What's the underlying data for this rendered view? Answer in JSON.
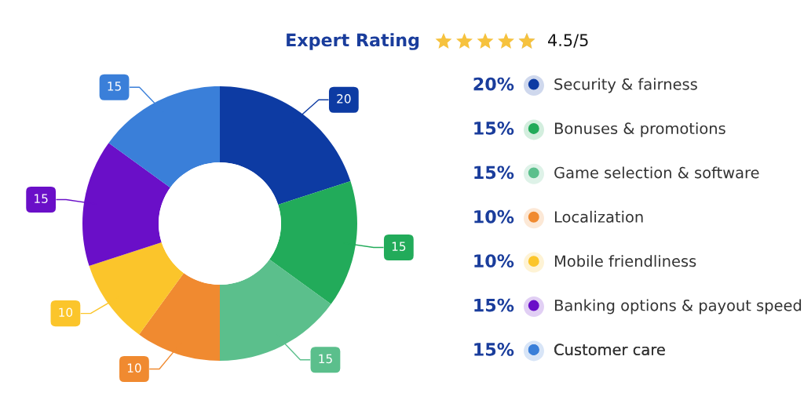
{
  "chart_data": {
    "type": "donut",
    "title": "Expert Rating",
    "subtitle": "4.5/5",
    "categories": [
      "Security & fairness",
      "Bonuses & promotions",
      "Game selection & software",
      "Localization",
      "Mobile friendliness",
      "Banking options & payout speed",
      "Customer care"
    ],
    "values": [
      20,
      15,
      15,
      10,
      10,
      15,
      15
    ],
    "colors": [
      "#0d3ba3",
      "#22ab5a",
      "#5bbf8c",
      "#f08a30",
      "#fbc52b",
      "#6a0fc8",
      "#3a7fd9"
    ],
    "annotations": [
      "20%",
      "15%",
      "15%",
      "10%",
      "10%",
      "15%",
      "15%"
    ],
    "data_labels": true,
    "legend": "right"
  }
}
